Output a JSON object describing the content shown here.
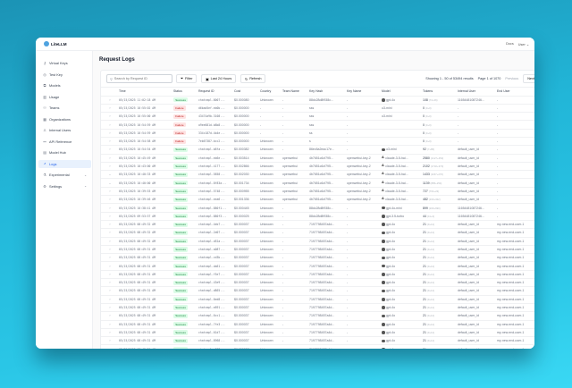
{
  "app": {
    "name": "LiteLLM"
  },
  "header": {
    "docs": "Docs",
    "user": "User"
  },
  "sidebar": {
    "items": [
      {
        "label": "Virtual Keys",
        "icon": "key-icon",
        "glyph": "⚷"
      },
      {
        "label": "Test Key",
        "icon": "play-icon",
        "glyph": "◎"
      },
      {
        "label": "Models",
        "icon": "cube-icon",
        "glyph": "⧉"
      },
      {
        "label": "Usage",
        "icon": "bar-chart-icon",
        "glyph": "▥"
      },
      {
        "label": "Teams",
        "icon": "team-icon",
        "glyph": "⚇"
      },
      {
        "label": "Organizations",
        "icon": "bank-icon",
        "glyph": "▦"
      },
      {
        "label": "Internal Users",
        "icon": "user-icon",
        "glyph": "♙"
      },
      {
        "label": "API Reference",
        "icon": "api-icon",
        "glyph": "⚯"
      },
      {
        "label": "Model Hub",
        "icon": "book-icon",
        "glyph": "▤"
      },
      {
        "label": "Logs",
        "icon": "line-chart-icon",
        "glyph": "⩘",
        "active": true
      },
      {
        "label": "Experimental",
        "icon": "experiment-icon",
        "glyph": "⚗",
        "expandable": true
      },
      {
        "label": "Settings",
        "icon": "gear-icon",
        "glyph": "⚙",
        "expandable": true
      }
    ]
  },
  "main": {
    "title": "Request Logs",
    "search": {
      "placeholder": "Search by Request ID",
      "value": ""
    },
    "toolbar": {
      "filter": "Filter",
      "time_range": "Last 24 Hours",
      "refresh": "Refresh"
    },
    "pagination": {
      "summary": "Showing 1 - 50 of 53494 results",
      "page": "Page 1 of 1070",
      "previous": "Previous",
      "next": "Next"
    },
    "columns": [
      "",
      "Time",
      "Status",
      "Request ID",
      "Cost",
      "Country",
      "Team Name",
      "Key Hash",
      "Key Name",
      "Model",
      "Tokens",
      "Internal User",
      "End User"
    ],
    "rows": [
      {
        "time": "05/15/2025 11:02:18 AM",
        "status": "Success",
        "id": "chatcmpl-8007...",
        "cost": "$0.000080",
        "country": "Unknown",
        "team": "-",
        "hash": "88dc28d8f938c...",
        "keyname": "-",
        "model": "gpt-4o",
        "micon": "openai",
        "tokens": "108",
        "tok": "(72+36)",
        "iuser": "11654481087246...",
        "euser": "-"
      },
      {
        "time": "05/15/2025 10:55:02 AM",
        "status": "Failure",
        "id": "d6bad5ef-eb0b...",
        "cost": "$0.000000",
        "country": "-",
        "team": "-",
        "hash": "sss",
        "keyname": "-",
        "model": "o3-mini",
        "micon": "",
        "tokens": "0",
        "tok": "(0+0)",
        "iuser": "-",
        "euser": "-"
      },
      {
        "time": "05/15/2025 10:55:00 AM",
        "status": "Failure",
        "id": "43474a9b-3108...",
        "cost": "$0.000000",
        "country": "-",
        "team": "-",
        "hash": "sss",
        "keyname": "-",
        "model": "o3-mini",
        "micon": "",
        "tokens": "0",
        "tok": "(0+0)",
        "iuser": "-",
        "euser": "-"
      },
      {
        "time": "05/15/2025 10:54:59 AM",
        "status": "Failure",
        "id": "a9ee681d-b8b8...",
        "cost": "$0.000000",
        "country": "-",
        "team": "-",
        "hash": "sss",
        "keyname": "-",
        "model": "",
        "micon": "",
        "tokens": "0",
        "tok": "(0+0)",
        "iuser": "-",
        "euser": "-"
      },
      {
        "time": "05/15/2025 10:54:59 AM",
        "status": "Failure",
        "id": "334c187d-4b4e...",
        "cost": "$0.000000",
        "country": "-",
        "team": "-",
        "hash": "ss",
        "keyname": "-",
        "model": "",
        "micon": "",
        "tokens": "0",
        "tok": "(0+0)",
        "iuser": "-",
        "euser": "-"
      },
      {
        "time": "05/15/2025 10:54:58 AM",
        "status": "Failure",
        "id": "7eb67387-bcc2...",
        "cost": "$0.000000",
        "country": "Unknown",
        "team": "-",
        "hash": "s",
        "keyname": "-",
        "model": "",
        "micon": "",
        "tokens": "0",
        "tok": "(0+0)",
        "iuser": "-",
        "euser": "-"
      },
      {
        "time": "05/15/2025 10:54:54 AM",
        "status": "Success",
        "id": "chatcmpl-b8fa...",
        "cost": "$0.000382",
        "country": "Unknown",
        "team": "-",
        "hash": "86ec5a2eac17e...",
        "keyname": "-",
        "model": "o3-mini",
        "micon": "openai",
        "tokens": "92",
        "tok": "(7+85)",
        "iuser": "default_user_id",
        "euser": "-"
      },
      {
        "time": "05/15/2025 10:45:49 AM",
        "status": "Success",
        "id": "chatcmpl-eb6e...",
        "cost": "$0.003514",
        "country": "Unknown",
        "team": "openwebui",
        "hash": "4b7651c6cf795...",
        "keyname": "openwebui-key-2",
        "model": "claude-3-5-hai...",
        "micon": "anthropic",
        "tokens": "2580",
        "tok": "(2127+453)",
        "iuser": "default_user_id",
        "euser": "-"
      },
      {
        "time": "05/15/2025 10:43:00 AM",
        "status": "Success",
        "id": "chatcmpl-4177...",
        "cost": "$0.002866",
        "country": "Unknown",
        "team": "openwebui",
        "hash": "4b7651c6cf795...",
        "keyname": "openwebui-key-2",
        "model": "claude-3-5-hai...",
        "micon": "anthropic",
        "tokens": "2102",
        "tok": "(1732+370)",
        "iuser": "default_user_id",
        "euser": "-"
      },
      {
        "time": "05/15/2025 10:40:33 AM",
        "status": "Success",
        "id": "chatcmpl-5858...",
        "cost": "$0.002030",
        "country": "Unknown",
        "team": "openwebui",
        "hash": "4b7651c6cf795...",
        "keyname": "openwebui-key-2",
        "model": "claude-3-5-hai...",
        "micon": "anthropic",
        "tokens": "1433",
        "tok": "(1157+276)",
        "iuser": "default_user_id",
        "euser": "-",
        "expanded": true
      },
      {
        "time": "05/15/2025 10:40:00 AM",
        "status": "Success",
        "id": "chatcmpl-8f83a...",
        "cost": "$0.001734",
        "country": "Unknown",
        "team": "openwebui",
        "hash": "4b7651c6cf795...",
        "keyname": "openwebui-key-2",
        "model": "claude-3-5-hai...",
        "micon": "anthropic",
        "tokens": "1139",
        "tok": "(885+254)",
        "iuser": "default_user_id",
        "euser": "-",
        "expanded": true
      },
      {
        "time": "05/15/2025 10:39:53 AM",
        "status": "Success",
        "id": "chatcmpl-5748...",
        "cost": "$0.000955",
        "country": "Unknown",
        "team": "openwebui",
        "hash": "4b7651c6cf795...",
        "keyname": "openwebui-key-2",
        "model": "claude-3-5-hai...",
        "micon": "anthropic",
        "tokens": "727",
        "tok": "(704+23)",
        "iuser": "default_user_id",
        "euser": "-"
      },
      {
        "time": "05/15/2025 10:39:46 AM",
        "status": "Success",
        "id": "chatcmpl-eea6...",
        "cost": "$0.001336",
        "country": "Unknown",
        "team": "openwebui",
        "hash": "4b7651c6cf795...",
        "keyname": "openwebui-key-2",
        "model": "claude-3-5-hai...",
        "micon": "anthropic",
        "tokens": "482",
        "tok": "(160+322)",
        "iuser": "default_user_id",
        "euser": "-"
      },
      {
        "time": "05/15/2025 10:38:41 AM",
        "status": "Success",
        "id": "chatcmpl-880f1...",
        "cost": "$0.000445",
        "country": "Unknown",
        "team": "-",
        "hash": "88dc28d8f938c...",
        "keyname": "-",
        "model": "gpt-4o-mini",
        "micon": "openai",
        "tokens": "899",
        "tok": "(209+690)",
        "iuser": "11654481087246...",
        "euser": "-"
      },
      {
        "time": "05/15/2025 09:53:57 AM",
        "status": "Success",
        "id": "chatcmpl-880f3...",
        "cost": "$0.000025",
        "country": "Unknown",
        "team": "-",
        "hash": "88dc28d8f938c...",
        "keyname": "-",
        "model": "gpt-3.5-turbo",
        "micon": "openai",
        "tokens": "44",
        "tok": "(41+3)",
        "iuser": "11654481087246...",
        "euser": "-"
      },
      {
        "time": "05/15/2025 08:49:32 AM",
        "status": "Success",
        "id": "chatcmpl-4eb7...",
        "cost": "$0.000037",
        "country": "Unknown",
        "team": "-",
        "hash": "7197798457a4d...",
        "keyname": "-",
        "model": "gpt-4o",
        "micon": "openai",
        "tokens": "21",
        "tok": "(9+12)",
        "iuser": "default_user_id",
        "euser": "my-new-end-user-1"
      },
      {
        "time": "05/15/2025 08:49:32 AM",
        "status": "Success",
        "id": "chatcmpl-2d07...",
        "cost": "$0.000037",
        "country": "Unknown",
        "team": "-",
        "hash": "7197798457a4d...",
        "keyname": "-",
        "model": "gpt-4o",
        "micon": "openai",
        "tokens": "21",
        "tok": "(9+12)",
        "iuser": "default_user_id",
        "euser": "my-new-end-user-1"
      },
      {
        "time": "05/15/2025 08:49:32 AM",
        "status": "Success",
        "id": "chatcmpl-d52a...",
        "cost": "$0.000037",
        "country": "Unknown",
        "team": "-",
        "hash": "7197798457a4d...",
        "keyname": "-",
        "model": "gpt-4o",
        "micon": "openai",
        "tokens": "21",
        "tok": "(9+12)",
        "iuser": "default_user_id",
        "euser": "my-new-end-user-1"
      },
      {
        "time": "05/15/2025 08:49:31 AM",
        "status": "Success",
        "id": "chatcmpl-a087...",
        "cost": "$0.000037",
        "country": "Unknown",
        "team": "-",
        "hash": "7197798457a4d...",
        "keyname": "-",
        "model": "gpt-4o",
        "micon": "openai",
        "tokens": "21",
        "tok": "(9+12)",
        "iuser": "default_user_id",
        "euser": "my-new-end-user-1"
      },
      {
        "time": "05/15/2025 08:49:31 AM",
        "status": "Success",
        "id": "chatcmpl-cd3b...",
        "cost": "$0.000037",
        "country": "Unknown",
        "team": "-",
        "hash": "7197798457a4d...",
        "keyname": "-",
        "model": "gpt-4o",
        "micon": "openai",
        "tokens": "21",
        "tok": "(9+12)",
        "iuser": "default_user_id",
        "euser": "my-new-end-user-1"
      },
      {
        "time": "05/15/2025 08:49:31 AM",
        "status": "Success",
        "id": "chatcmpl-da61...",
        "cost": "$0.000037",
        "country": "Unknown",
        "team": "-",
        "hash": "7197798457a4d...",
        "keyname": "-",
        "model": "gpt-4o",
        "micon": "openai",
        "tokens": "21",
        "tok": "(9+12)",
        "iuser": "default_user_id",
        "euser": "my-new-end-user-1"
      },
      {
        "time": "05/15/2025 08:49:31 AM",
        "status": "Success",
        "id": "chatcmpl-f5e7...",
        "cost": "$0.000037",
        "country": "Unknown",
        "team": "-",
        "hash": "7197798457a4d...",
        "keyname": "-",
        "model": "gpt-4o",
        "micon": "openai",
        "tokens": "21",
        "tok": "(9+12)",
        "iuser": "default_user_id",
        "euser": "my-new-end-user-1"
      },
      {
        "time": "05/15/2025 08:49:31 AM",
        "status": "Success",
        "id": "chatcmpl-43e9...",
        "cost": "$0.000037",
        "country": "Unknown",
        "team": "-",
        "hash": "7197798457a4d...",
        "keyname": "-",
        "model": "gpt-4o",
        "micon": "openai",
        "tokens": "21",
        "tok": "(9+12)",
        "iuser": "default_user_id",
        "euser": "my-new-end-user-1"
      },
      {
        "time": "05/15/2025 08:49:31 AM",
        "status": "Success",
        "id": "chatcmpl-d865...",
        "cost": "$0.000037",
        "country": "Unknown",
        "team": "-",
        "hash": "7197798457a4d...",
        "keyname": "-",
        "model": "gpt-4o",
        "micon": "openai",
        "tokens": "21",
        "tok": "(9+12)",
        "iuser": "default_user_id",
        "euser": "my-new-end-user-1"
      },
      {
        "time": "05/15/2025 08:49:31 AM",
        "status": "Success",
        "id": "chatcmpl-6ed8...",
        "cost": "$0.000037",
        "country": "Unknown",
        "team": "-",
        "hash": "7197798457a4d...",
        "keyname": "-",
        "model": "gpt-4o",
        "micon": "openai",
        "tokens": "21",
        "tok": "(9+12)",
        "iuser": "default_user_id",
        "euser": "my-new-end-user-1"
      },
      {
        "time": "05/15/2025 08:49:31 AM",
        "status": "Success",
        "id": "chatcmpl-e891...",
        "cost": "$0.000037",
        "country": "Unknown",
        "team": "-",
        "hash": "7197798457a4d...",
        "keyname": "-",
        "model": "gpt-4o",
        "micon": "openai",
        "tokens": "21",
        "tok": "(9+12)",
        "iuser": "default_user_id",
        "euser": "my-new-end-user-1"
      },
      {
        "time": "05/15/2025 08:49:31 AM",
        "status": "Success",
        "id": "chatcmpl-6cc1...",
        "cost": "$0.000037",
        "country": "Unknown",
        "team": "-",
        "hash": "7197798457a4d...",
        "keyname": "-",
        "model": "gpt-4o",
        "micon": "openai",
        "tokens": "21",
        "tok": "(9+12)",
        "iuser": "default_user_id",
        "euser": "my-new-end-user-1"
      },
      {
        "time": "05/15/2025 08:49:31 AM",
        "status": "Success",
        "id": "chatcmpl-7fe3...",
        "cost": "$0.000037",
        "country": "Unknown",
        "team": "-",
        "hash": "7197798457a4d...",
        "keyname": "-",
        "model": "gpt-4o",
        "micon": "openai",
        "tokens": "21",
        "tok": "(9+12)",
        "iuser": "default_user_id",
        "euser": "my-new-end-user-1"
      },
      {
        "time": "05/15/2025 08:49:31 AM",
        "status": "Success",
        "id": "chatcmpl-61d7...",
        "cost": "$0.000037",
        "country": "Unknown",
        "team": "-",
        "hash": "7197798457a4d...",
        "keyname": "-",
        "model": "gpt-4o",
        "micon": "openai",
        "tokens": "21",
        "tok": "(9+12)",
        "iuser": "default_user_id",
        "euser": "my-new-end-user-1"
      },
      {
        "time": "05/15/2025 08:49:31 AM",
        "status": "Success",
        "id": "chatcmpl-8968...",
        "cost": "$0.000037",
        "country": "Unknown",
        "team": "-",
        "hash": "7197798457a4d...",
        "keyname": "-",
        "model": "gpt-4o",
        "micon": "openai",
        "tokens": "21",
        "tok": "(9+12)",
        "iuser": "default_user_id",
        "euser": "my-new-end-user-1"
      },
      {
        "time": "05/15/2025 08:49:31 AM",
        "status": "Success",
        "id": "chatcmpl-e377...",
        "cost": "$0.000037",
        "country": "Unknown",
        "team": "-",
        "hash": "7197798457a4d...",
        "keyname": "-",
        "model": "gpt-4o",
        "micon": "openai",
        "tokens": "21",
        "tok": "(9+12)",
        "iuser": "default_user_id",
        "euser": "my-new-end-user-1"
      }
    ]
  },
  "colors": {
    "success_bg": "#dcfce7",
    "success_text": "#15803d",
    "failure_bg": "#fee2e2",
    "failure_text": "#b91c1c",
    "active_nav": "#2563eb"
  }
}
